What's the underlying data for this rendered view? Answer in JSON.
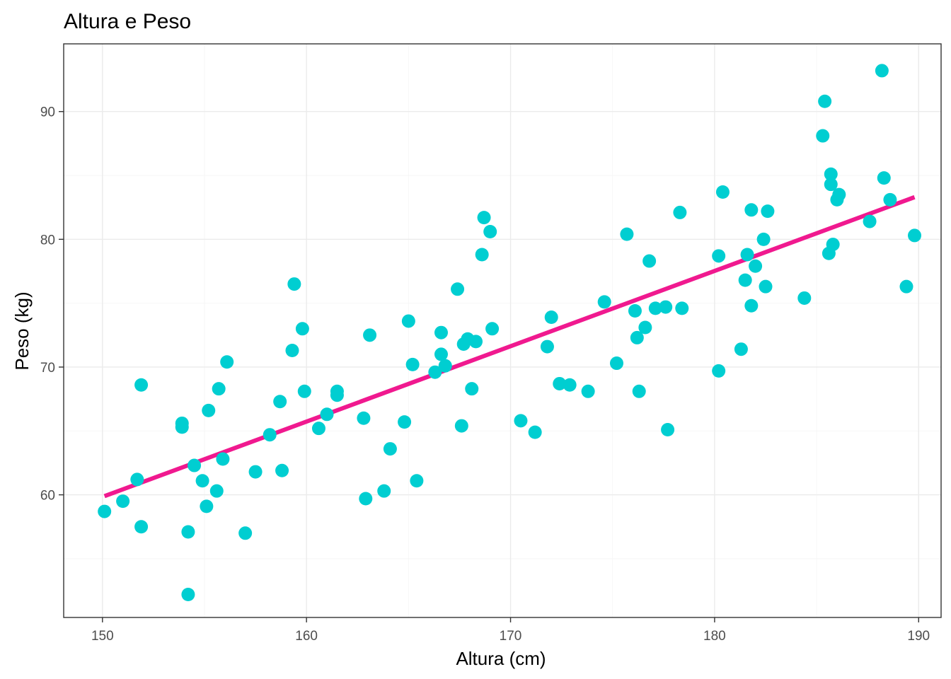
{
  "chart_data": {
    "type": "scatter",
    "title": "Altura e Peso",
    "xlabel": "Altura (cm)",
    "ylabel": "Peso (kg)",
    "xlim": [
      148.1,
      191.1
    ],
    "ylim": [
      50.4,
      95.3
    ],
    "x_ticks": [
      150,
      160,
      170,
      180,
      190
    ],
    "x_tick_labels": [
      "150",
      "160",
      "170",
      "180",
      "190"
    ],
    "y_ticks": [
      60,
      70,
      80,
      90
    ],
    "y_tick_labels": [
      "60",
      "70",
      "80",
      "90"
    ],
    "x_minor": [
      155,
      165,
      175,
      185
    ],
    "y_minor": [
      55,
      65,
      75,
      85
    ],
    "grid": true,
    "colors": {
      "points": "#00CED1",
      "trend_line": "#F0198F"
    },
    "trend_line": {
      "x": [
        150.1,
        189.8
      ],
      "y": [
        59.9,
        83.3
      ]
    },
    "points": [
      {
        "x": 150.1,
        "y": 58.7
      },
      {
        "x": 151.0,
        "y": 59.5
      },
      {
        "x": 151.7,
        "y": 61.2
      },
      {
        "x": 151.9,
        "y": 57.5
      },
      {
        "x": 151.9,
        "y": 68.6
      },
      {
        "x": 153.9,
        "y": 65.6
      },
      {
        "x": 153.9,
        "y": 65.3
      },
      {
        "x": 154.2,
        "y": 57.1
      },
      {
        "x": 154.2,
        "y": 52.2
      },
      {
        "x": 154.5,
        "y": 62.3
      },
      {
        "x": 154.9,
        "y": 61.1
      },
      {
        "x": 155.1,
        "y": 59.1
      },
      {
        "x": 155.2,
        "y": 66.6
      },
      {
        "x": 155.6,
        "y": 60.3
      },
      {
        "x": 155.7,
        "y": 68.3
      },
      {
        "x": 155.9,
        "y": 62.8
      },
      {
        "x": 156.1,
        "y": 70.4
      },
      {
        "x": 157.0,
        "y": 57.0
      },
      {
        "x": 157.5,
        "y": 61.8
      },
      {
        "x": 158.2,
        "y": 64.7
      },
      {
        "x": 158.7,
        "y": 67.3
      },
      {
        "x": 158.8,
        "y": 61.9
      },
      {
        "x": 159.3,
        "y": 71.3
      },
      {
        "x": 159.4,
        "y": 76.5
      },
      {
        "x": 159.8,
        "y": 73.0
      },
      {
        "x": 159.9,
        "y": 68.1
      },
      {
        "x": 160.6,
        "y": 65.2
      },
      {
        "x": 161.0,
        "y": 66.3
      },
      {
        "x": 161.5,
        "y": 68.1
      },
      {
        "x": 161.5,
        "y": 67.8
      },
      {
        "x": 162.8,
        "y": 66.0
      },
      {
        "x": 162.9,
        "y": 59.7
      },
      {
        "x": 163.1,
        "y": 72.5
      },
      {
        "x": 163.8,
        "y": 60.3
      },
      {
        "x": 164.1,
        "y": 63.6
      },
      {
        "x": 164.8,
        "y": 65.7
      },
      {
        "x": 165.0,
        "y": 73.6
      },
      {
        "x": 165.2,
        "y": 70.2
      },
      {
        "x": 165.4,
        "y": 61.1
      },
      {
        "x": 166.3,
        "y": 69.6
      },
      {
        "x": 166.6,
        "y": 72.7
      },
      {
        "x": 166.6,
        "y": 71.0
      },
      {
        "x": 166.8,
        "y": 70.1
      },
      {
        "x": 167.4,
        "y": 76.1
      },
      {
        "x": 167.6,
        "y": 65.4
      },
      {
        "x": 167.7,
        "y": 71.8
      },
      {
        "x": 167.9,
        "y": 72.2
      },
      {
        "x": 168.1,
        "y": 68.3
      },
      {
        "x": 168.3,
        "y": 72.0
      },
      {
        "x": 168.6,
        "y": 78.8
      },
      {
        "x": 168.7,
        "y": 81.7
      },
      {
        "x": 169.0,
        "y": 80.6
      },
      {
        "x": 169.1,
        "y": 73.0
      },
      {
        "x": 170.5,
        "y": 65.8
      },
      {
        "x": 171.2,
        "y": 64.9
      },
      {
        "x": 171.8,
        "y": 71.6
      },
      {
        "x": 172.0,
        "y": 73.9
      },
      {
        "x": 172.4,
        "y": 68.7
      },
      {
        "x": 172.9,
        "y": 68.6
      },
      {
        "x": 173.8,
        "y": 68.1
      },
      {
        "x": 174.6,
        "y": 75.1
      },
      {
        "x": 175.2,
        "y": 70.3
      },
      {
        "x": 175.7,
        "y": 80.4
      },
      {
        "x": 176.1,
        "y": 74.4
      },
      {
        "x": 176.2,
        "y": 72.3
      },
      {
        "x": 176.3,
        "y": 68.1
      },
      {
        "x": 176.6,
        "y": 73.1
      },
      {
        "x": 176.8,
        "y": 78.3
      },
      {
        "x": 177.1,
        "y": 74.6
      },
      {
        "x": 177.6,
        "y": 74.7
      },
      {
        "x": 177.7,
        "y": 65.1
      },
      {
        "x": 178.3,
        "y": 82.1
      },
      {
        "x": 178.4,
        "y": 74.6
      },
      {
        "x": 180.2,
        "y": 69.7
      },
      {
        "x": 180.2,
        "y": 78.7
      },
      {
        "x": 180.4,
        "y": 83.7
      },
      {
        "x": 181.3,
        "y": 71.4
      },
      {
        "x": 181.5,
        "y": 76.8
      },
      {
        "x": 181.6,
        "y": 78.8
      },
      {
        "x": 181.8,
        "y": 74.8
      },
      {
        "x": 181.8,
        "y": 82.3
      },
      {
        "x": 182.0,
        "y": 77.9
      },
      {
        "x": 182.4,
        "y": 80.0
      },
      {
        "x": 182.5,
        "y": 76.3
      },
      {
        "x": 182.6,
        "y": 82.2
      },
      {
        "x": 184.4,
        "y": 75.4
      },
      {
        "x": 185.3,
        "y": 88.1
      },
      {
        "x": 185.4,
        "y": 90.8
      },
      {
        "x": 185.6,
        "y": 78.9
      },
      {
        "x": 185.7,
        "y": 85.1
      },
      {
        "x": 185.7,
        "y": 84.3
      },
      {
        "x": 185.8,
        "y": 79.6
      },
      {
        "x": 186.0,
        "y": 83.1
      },
      {
        "x": 186.1,
        "y": 83.5
      },
      {
        "x": 187.6,
        "y": 81.4
      },
      {
        "x": 188.2,
        "y": 93.2
      },
      {
        "x": 188.3,
        "y": 84.8
      },
      {
        "x": 188.6,
        "y": 83.1
      },
      {
        "x": 189.4,
        "y": 76.3
      },
      {
        "x": 189.8,
        "y": 80.3
      }
    ]
  }
}
